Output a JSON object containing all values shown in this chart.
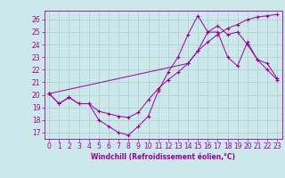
{
  "title": "",
  "xlabel": "Windchill (Refroidissement éolien,°C)",
  "bg_color": "#cce8eb",
  "line_color": "#990099",
  "grid_color": "#aacccc",
  "xlim": [
    -0.5,
    23.5
  ],
  "ylim": [
    16.5,
    26.7
  ],
  "yticks": [
    17,
    18,
    19,
    20,
    21,
    22,
    23,
    24,
    25,
    26
  ],
  "xticks": [
    0,
    1,
    2,
    3,
    4,
    5,
    6,
    7,
    8,
    9,
    10,
    11,
    12,
    13,
    14,
    15,
    16,
    17,
    18,
    19,
    20,
    21,
    22,
    23
  ],
  "curve1_x": [
    0,
    1,
    2,
    3,
    4,
    5,
    6,
    7,
    8,
    9,
    10,
    11,
    12,
    13,
    14,
    15,
    16,
    17,
    18,
    19,
    20,
    21,
    22,
    23
  ],
  "curve1_y": [
    20.1,
    19.3,
    19.8,
    19.3,
    19.3,
    18.0,
    17.5,
    17.0,
    16.8,
    17.5,
    18.3,
    20.3,
    21.8,
    23.0,
    24.8,
    26.3,
    25.0,
    25.0,
    23.0,
    22.3,
    24.2,
    22.8,
    22.5,
    21.3
  ],
  "curve2_x": [
    0,
    1,
    2,
    3,
    4,
    5,
    6,
    7,
    8,
    9,
    10,
    11,
    12,
    13,
    14,
    15,
    16,
    17,
    18,
    19,
    20,
    21,
    22,
    23
  ],
  "curve2_y": [
    20.1,
    19.3,
    19.8,
    19.3,
    19.3,
    18.7,
    18.5,
    18.3,
    18.2,
    18.6,
    19.6,
    20.5,
    21.2,
    21.8,
    22.5,
    23.5,
    24.2,
    24.8,
    25.3,
    25.6,
    26.0,
    26.2,
    26.3,
    26.4
  ],
  "curve3_x": [
    0,
    14,
    15,
    16,
    17,
    18,
    19,
    20,
    21,
    22,
    23
  ],
  "curve3_y": [
    20.1,
    22.5,
    23.5,
    25.0,
    25.5,
    24.8,
    25.0,
    24.0,
    22.8,
    22.0,
    21.2
  ],
  "tick_fontsize": 5.5,
  "xlabel_fontsize": 5.5
}
